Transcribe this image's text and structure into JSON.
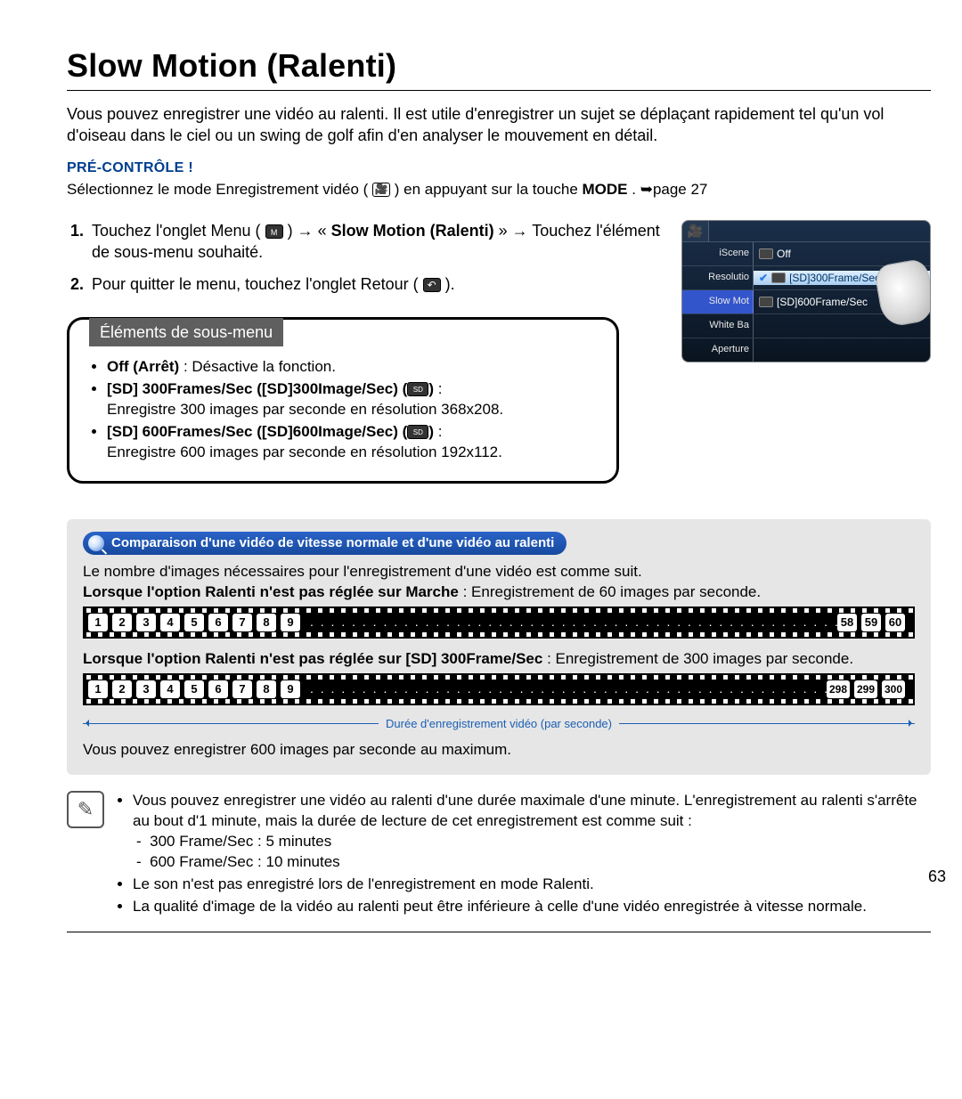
{
  "page": {
    "title": "Slow Motion (Ralenti)",
    "intro": "Vous pouvez enregistrer une vidéo au ralenti. Il est utile d'enregistrer un sujet se déplaçant rapidement tel qu'un vol d'oiseau dans le ciel ou un swing de golf afin d'en analyser le mouvement en détail.",
    "precheck_label": "PRÉ-CONTRÔLE !",
    "precheck_text_a": "Sélectionnez le mode Enregistrement vidéo (",
    "precheck_text_b": ") en appuyant sur la touche ",
    "precheck_mode": "MODE",
    "precheck_text_c": ". ➥page 27",
    "page_number": "63"
  },
  "steps": {
    "s1_a": "Touchez l'onglet Menu (",
    "s1_b": ") → « ",
    "s1_bold": "Slow Motion (Ralenti)",
    "s1_c": " » → Touchez l'élément de sous-menu souhaité.",
    "s2_a": "Pour quitter le menu, touchez l'onglet Retour (",
    "s2_b": ")."
  },
  "screen": {
    "left": [
      "iScene",
      "Resolutio",
      "Slow Mot",
      "White Ba",
      "Aperture"
    ],
    "right": {
      "off": "Off",
      "opt300": "[SD]300Frame/Sec",
      "opt600": "[SD]600Frame/Sec"
    }
  },
  "submenu": {
    "title": "Éléments de sous-menu",
    "off_b": "Off (Arrêt)",
    "off_t": " : Désactive la fonction.",
    "o300_b": "[SD] 300Frames/Sec ([SD]300Image/Sec) (",
    "o300_t": "Enregistre 300 images par seconde en résolution 368x208.",
    "o600_b": "[SD] 600Frames/Sec ([SD]600Image/Sec) (",
    "o600_t": "Enregistre 600 images par seconde en résolution 192x112."
  },
  "compare": {
    "pill": "Comparaison d'une vidéo de vitesse normale et d'une vidéo au ralenti",
    "line1": "Le nombre d'images nécessaires pour l'enregistrement d'une vidéo est comme suit.",
    "line2_b": "Lorsque l'option Ralenti n'est pas réglée sur Marche",
    "line2_t": " : Enregistrement de 60 images par seconde.",
    "strip1_start": [
      "1",
      "2",
      "3",
      "4",
      "5",
      "6",
      "7",
      "8",
      "9"
    ],
    "strip1_end": [
      "58",
      "59",
      "60"
    ],
    "line3_b": "Lorsque l'option Ralenti n'est pas réglée sur [SD] 300Frame/Sec",
    "line3_t": " : Enregistrement de 300 images par seconde.",
    "strip2_start": [
      "1",
      "2",
      "3",
      "4",
      "5",
      "6",
      "7",
      "8",
      "9"
    ],
    "strip2_end": [
      "298",
      "299",
      "300"
    ],
    "timeline_label": "Durée d'enregistrement vidéo (par seconde)",
    "footer": "Vous pouvez enregistrer 600 images par seconde au maximum."
  },
  "notes": {
    "n1": "Vous pouvez enregistrer une vidéo au ralenti d'une durée maximale d'une minute. L'enregistrement au ralenti s'arrête au bout d'1 minute, mais la durée de lecture de cet enregistrement est comme suit :",
    "n1a": "300 Frame/Sec : 5 minutes",
    "n1b": "600 Frame/Sec : 10 minutes",
    "n2": "Le son n'est pas enregistré lors de l'enregistrement en mode Ralenti.",
    "n3": "La qualité d'image de la vidéo au ralenti peut être inférieure à celle d'une vidéo enregistrée à vitesse normale."
  }
}
